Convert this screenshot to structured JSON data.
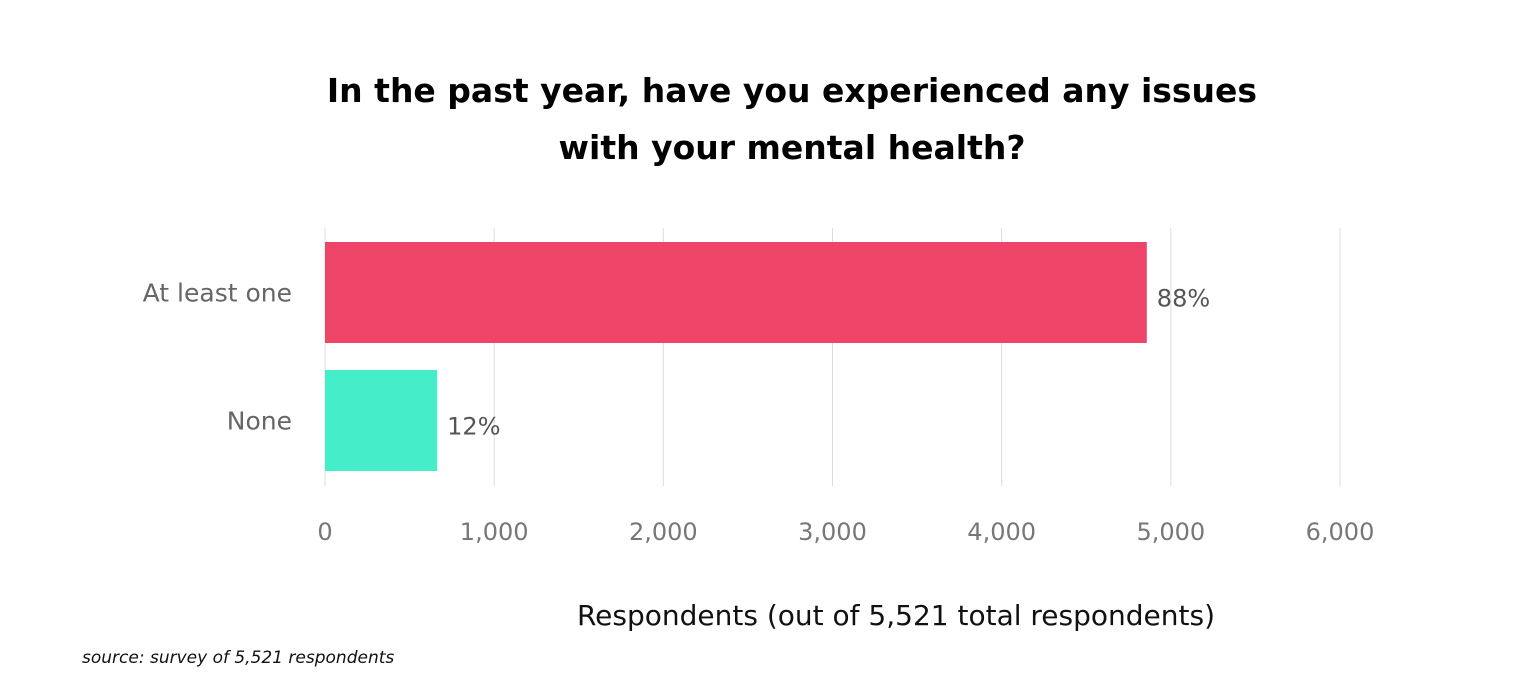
{
  "chart_data": {
    "type": "bar",
    "orientation": "horizontal",
    "title_lines": [
      "In the past year, have you experienced any issues",
      "with your mental health?"
    ],
    "categories": [
      "At least one",
      "None"
    ],
    "values": [
      4858,
      663
    ],
    "data_labels": [
      "88%",
      "12%"
    ],
    "colors": [
      "#ed4468",
      "#45edc9"
    ],
    "xlabel": "Respondents  (out of 5,521 total respondents)",
    "ylabel": "",
    "xlim": [
      0,
      6000
    ],
    "xticks": [
      0,
      1000,
      2000,
      3000,
      4000,
      5000,
      6000
    ],
    "xtick_labels": [
      "0",
      "1,000",
      "2,000",
      "3,000",
      "4,000",
      "5,000",
      "6,000"
    ],
    "grid": "vertical",
    "legend": "none"
  },
  "source": "source: survey of 5,521 respondents"
}
